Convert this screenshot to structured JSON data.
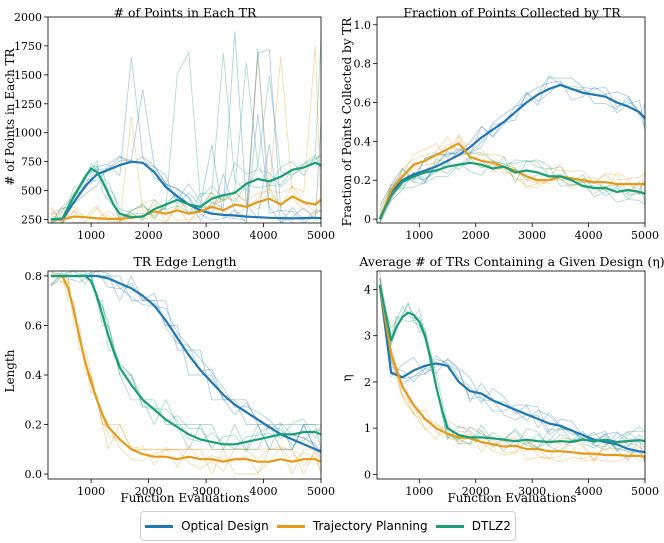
{
  "colors": {
    "optical": "#1f77b4",
    "trajectory": "#e69a1a",
    "dtlz2": "#1a9e77"
  },
  "legend": [
    "Optical Design",
    "Trajectory Planning",
    "DTLZ2"
  ],
  "chart_data": [
    {
      "type": "line",
      "title": "# of Points in Each TR",
      "xlabel": "",
      "ylabel": "# of Points in Each TR",
      "xlim": [
        250,
        5000
      ],
      "ylim": [
        220,
        2000
      ],
      "xticks": [
        1000,
        2000,
        3000,
        4000,
        5000
      ],
      "xticklabels": [
        "1000",
        "2000",
        "3000",
        "4000",
        "5000"
      ],
      "yticks": [
        250,
        500,
        750,
        1000,
        1250,
        1500,
        1750,
        2000
      ],
      "yticklabels": [
        "250",
        "500",
        "750",
        "1000",
        "1250",
        "1500",
        "1750",
        "2000"
      ],
      "series": [
        {
          "name": "Optical Design",
          "x": [
            300,
            500,
            700,
            900,
            1100,
            1300,
            1500,
            1700,
            1900,
            2100,
            2300,
            2500,
            2700,
            2900,
            3100,
            3300,
            3500,
            3700,
            3900,
            4100,
            4300,
            4500,
            4700,
            4900,
            5000
          ],
          "values": [
            250,
            250,
            400,
            540,
            640,
            680,
            720,
            750,
            740,
            660,
            530,
            450,
            380,
            330,
            300,
            290,
            285,
            275,
            270,
            265,
            262,
            260,
            262,
            265,
            262
          ]
        },
        {
          "name": "Trajectory Planning",
          "x": [
            300,
            500,
            700,
            900,
            1100,
            1300,
            1500,
            1700,
            1900,
            2100,
            2300,
            2500,
            2700,
            2900,
            3100,
            3300,
            3500,
            3700,
            3900,
            4100,
            4300,
            4500,
            4700,
            4900,
            5000
          ],
          "values": [
            250,
            250,
            275,
            270,
            260,
            255,
            255,
            265,
            280,
            320,
            300,
            330,
            300,
            320,
            360,
            330,
            380,
            360,
            400,
            430,
            380,
            450,
            400,
            380,
            420
          ]
        },
        {
          "name": "DTLZ2",
          "x": [
            300,
            500,
            700,
            900,
            1000,
            1100,
            1200,
            1300,
            1400,
            1500,
            1700,
            1900,
            2100,
            2300,
            2500,
            2700,
            2900,
            3100,
            3300,
            3500,
            3700,
            3900,
            4100,
            4300,
            4500,
            4700,
            4900,
            5000
          ],
          "values": [
            250,
            260,
            450,
            620,
            690,
            660,
            580,
            470,
            370,
            300,
            270,
            275,
            340,
            380,
            420,
            380,
            360,
            430,
            460,
            480,
            560,
            600,
            580,
            620,
            680,
            700,
            740,
            720
          ]
        }
      ]
    },
    {
      "type": "line",
      "title": "Fraction of Points Collected by TR",
      "xlabel": "",
      "ylabel": "Fraction of Points Collected by TR",
      "xlim": [
        250,
        5000
      ],
      "ylim": [
        -0.02,
        1.04
      ],
      "xticks": [
        1000,
        2000,
        3000,
        4000,
        5000
      ],
      "xticklabels": [
        "1000",
        "2000",
        "3000",
        "4000",
        "5000"
      ],
      "yticks": [
        0,
        0.2,
        0.4,
        0.6,
        0.8,
        1.0
      ],
      "yticklabels": [
        "0",
        "0.2",
        "0.4",
        "0.6",
        "0.8",
        "1.0"
      ],
      "series": [
        {
          "name": "Optical Design",
          "x": [
            300,
            500,
            700,
            900,
            1100,
            1300,
            1500,
            1700,
            1900,
            2100,
            2300,
            2500,
            2700,
            2900,
            3100,
            3300,
            3500,
            3700,
            3900,
            4100,
            4300,
            4500,
            4700,
            4900,
            5000
          ],
          "values": [
            0,
            0.14,
            0.2,
            0.23,
            0.25,
            0.27,
            0.3,
            0.33,
            0.37,
            0.42,
            0.46,
            0.5,
            0.55,
            0.6,
            0.64,
            0.67,
            0.69,
            0.67,
            0.65,
            0.64,
            0.63,
            0.6,
            0.58,
            0.55,
            0.52
          ]
        },
        {
          "name": "Trajectory Planning",
          "x": [
            300,
            500,
            700,
            900,
            1100,
            1300,
            1500,
            1700,
            1900,
            2100,
            2300,
            2500,
            2700,
            2900,
            3100,
            3300,
            3500,
            3700,
            3900,
            4100,
            4300,
            4500,
            4700,
            4900,
            5000
          ],
          "values": [
            0,
            0.15,
            0.22,
            0.28,
            0.3,
            0.33,
            0.36,
            0.39,
            0.32,
            0.3,
            0.29,
            0.27,
            0.25,
            0.22,
            0.2,
            0.2,
            0.22,
            0.21,
            0.2,
            0.19,
            0.19,
            0.18,
            0.18,
            0.18,
            0.18
          ]
        },
        {
          "name": "DTLZ2",
          "x": [
            300,
            500,
            700,
            900,
            1100,
            1300,
            1500,
            1700,
            1900,
            2100,
            2300,
            2500,
            2700,
            2900,
            3100,
            3300,
            3500,
            3700,
            3900,
            4100,
            4300,
            4500,
            4700,
            4900,
            5000
          ],
          "values": [
            0,
            0.12,
            0.19,
            0.22,
            0.24,
            0.25,
            0.27,
            0.28,
            0.29,
            0.28,
            0.26,
            0.27,
            0.24,
            0.25,
            0.24,
            0.22,
            0.22,
            0.2,
            0.17,
            0.16,
            0.16,
            0.14,
            0.15,
            0.14,
            0.13
          ]
        }
      ]
    },
    {
      "type": "line",
      "title": "TR Edge Length",
      "xlabel": "Function Evaluations",
      "ylabel": "Length",
      "xlim": [
        250,
        5000
      ],
      "ylim": [
        -0.02,
        0.82
      ],
      "xticks": [
        1000,
        2000,
        3000,
        4000,
        5000
      ],
      "xticklabels": [
        "1000",
        "2000",
        "3000",
        "4000",
        "5000"
      ],
      "yticks": [
        0,
        0.2,
        0.4,
        0.6,
        0.8
      ],
      "yticklabels": [
        "0.0",
        "0.2",
        "0.4",
        "0.6",
        "0.8"
      ],
      "series": [
        {
          "name": "Optical Design",
          "x": [
            300,
            500,
            800,
            1100,
            1300,
            1500,
            1700,
            1900,
            2100,
            2300,
            2500,
            2700,
            2900,
            3100,
            3300,
            3500,
            3700,
            3900,
            4100,
            4300,
            4500,
            4700,
            4900,
            5000
          ],
          "values": [
            0.8,
            0.8,
            0.8,
            0.8,
            0.79,
            0.77,
            0.75,
            0.72,
            0.68,
            0.62,
            0.55,
            0.48,
            0.42,
            0.37,
            0.32,
            0.28,
            0.25,
            0.22,
            0.19,
            0.16,
            0.14,
            0.12,
            0.1,
            0.09
          ]
        },
        {
          "name": "Trajectory Planning",
          "x": [
            300,
            500,
            600,
            700,
            800,
            900,
            1000,
            1100,
            1200,
            1300,
            1500,
            1700,
            1900,
            2100,
            2300,
            2500,
            2700,
            2900,
            3100,
            3300,
            3500,
            3700,
            3900,
            4100,
            4300,
            4500,
            4700,
            4900,
            5000
          ],
          "values": [
            0.8,
            0.8,
            0.75,
            0.66,
            0.55,
            0.45,
            0.37,
            0.3,
            0.24,
            0.19,
            0.14,
            0.1,
            0.08,
            0.07,
            0.07,
            0.06,
            0.07,
            0.06,
            0.06,
            0.05,
            0.06,
            0.06,
            0.05,
            0.05,
            0.06,
            0.05,
            0.06,
            0.06,
            0.05
          ]
        },
        {
          "name": "DTLZ2",
          "x": [
            300,
            500,
            700,
            900,
            1000,
            1100,
            1200,
            1300,
            1400,
            1500,
            1700,
            1900,
            2100,
            2300,
            2500,
            2700,
            2900,
            3100,
            3300,
            3500,
            3700,
            3900,
            4100,
            4300,
            4500,
            4700,
            4900,
            5000
          ],
          "values": [
            0.8,
            0.8,
            0.8,
            0.8,
            0.78,
            0.72,
            0.64,
            0.56,
            0.49,
            0.43,
            0.36,
            0.3,
            0.26,
            0.22,
            0.19,
            0.16,
            0.14,
            0.13,
            0.12,
            0.12,
            0.13,
            0.14,
            0.15,
            0.16,
            0.16,
            0.17,
            0.17,
            0.16
          ]
        }
      ]
    },
    {
      "type": "line",
      "title": "Average # of TRs Containing a Given Design (η)",
      "xlabel": "Function Evaluations",
      "ylabel": "η",
      "xlim": [
        250,
        5000
      ],
      "ylim": [
        -0.1,
        4.4
      ],
      "xticks": [
        1000,
        2000,
        3000,
        4000,
        5000
      ],
      "xticklabels": [
        "1000",
        "2000",
        "3000",
        "4000",
        "5000"
      ],
      "yticks": [
        0,
        1,
        2,
        3,
        4
      ],
      "yticklabels": [
        "0",
        "1",
        "2",
        "3",
        "4"
      ],
      "series": [
        {
          "name": "Optical Design",
          "x": [
            300,
            500,
            700,
            900,
            1100,
            1300,
            1500,
            1700,
            1900,
            2100,
            2300,
            2500,
            2700,
            2900,
            3100,
            3300,
            3500,
            3700,
            3900,
            4100,
            4300,
            4500,
            4700,
            4900,
            5000
          ],
          "values": [
            4.1,
            2.2,
            2.1,
            2.25,
            2.35,
            2.4,
            2.35,
            2.0,
            1.8,
            1.75,
            1.6,
            1.5,
            1.4,
            1.3,
            1.2,
            1.1,
            1.05,
            0.95,
            0.85,
            0.75,
            0.7,
            0.65,
            0.55,
            0.5,
            0.48
          ]
        },
        {
          "name": "Trajectory Planning",
          "x": [
            300,
            500,
            700,
            900,
            1100,
            1300,
            1500,
            1700,
            1900,
            2100,
            2300,
            2500,
            2700,
            2900,
            3100,
            3300,
            3500,
            3700,
            3900,
            4100,
            4300,
            4500,
            4700,
            4900,
            5000
          ],
          "values": [
            4.1,
            2.6,
            1.9,
            1.5,
            1.2,
            1.0,
            0.88,
            0.8,
            0.78,
            0.7,
            0.65,
            0.6,
            0.62,
            0.55,
            0.55,
            0.5,
            0.5,
            0.48,
            0.45,
            0.45,
            0.42,
            0.42,
            0.4,
            0.4,
            0.38
          ]
        },
        {
          "name": "DTLZ2",
          "x": [
            300,
            500,
            600,
            700,
            800,
            900,
            1000,
            1100,
            1200,
            1300,
            1400,
            1500,
            1700,
            1900,
            2100,
            2300,
            2500,
            2700,
            2900,
            3100,
            3300,
            3500,
            3700,
            3900,
            4100,
            4300,
            4500,
            4700,
            4900,
            5000
          ],
          "values": [
            4.1,
            2.9,
            3.2,
            3.4,
            3.5,
            3.45,
            3.3,
            3.0,
            2.5,
            1.9,
            1.4,
            1.0,
            0.85,
            0.8,
            0.8,
            0.78,
            0.75,
            0.72,
            0.75,
            0.72,
            0.7,
            0.72,
            0.7,
            0.75,
            0.72,
            0.75,
            0.7,
            0.72,
            0.74,
            0.72
          ]
        }
      ]
    }
  ]
}
